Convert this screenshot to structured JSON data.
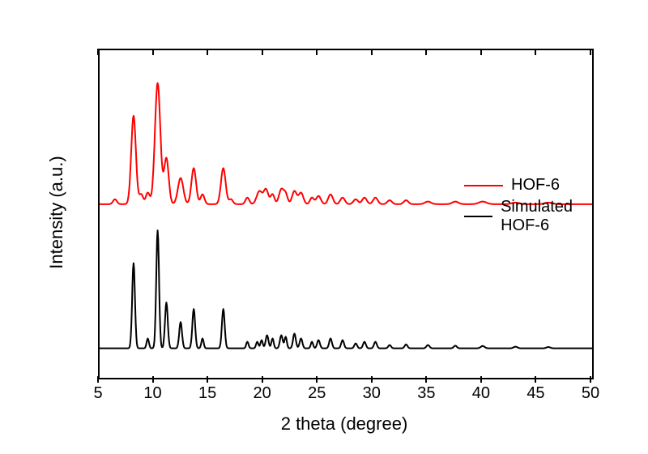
{
  "chart": {
    "type": "line",
    "background_color": "#ffffff",
    "border_color": "#000000",
    "xlabel": "2 theta (degree)",
    "ylabel": "Intensity (a.u.)",
    "label_fontsize": 22,
    "tick_fontsize": 20,
    "xlim": [
      5,
      50
    ],
    "xtick_step": 5,
    "xticks": [
      5,
      10,
      15,
      20,
      25,
      30,
      35,
      40,
      45,
      50
    ],
    "ylim": [
      0,
      100
    ],
    "show_y_ticks": false,
    "series": [
      {
        "name": "HOF-6",
        "color": "#ff0000",
        "line_width": 2,
        "baseline": 53,
        "peaks": [
          {
            "x": 6.4,
            "h": 1.5,
            "w": 0.25
          },
          {
            "x": 8.1,
            "h": 27,
            "w": 0.3
          },
          {
            "x": 8.8,
            "h": 3,
            "w": 0.25
          },
          {
            "x": 9.4,
            "h": 3.5,
            "w": 0.25
          },
          {
            "x": 10.3,
            "h": 37,
            "w": 0.35
          },
          {
            "x": 11.1,
            "h": 14,
            "w": 0.3
          },
          {
            "x": 12.4,
            "h": 8,
            "w": 0.35
          },
          {
            "x": 13.6,
            "h": 11,
            "w": 0.3
          },
          {
            "x": 14.4,
            "h": 3,
            "w": 0.25
          },
          {
            "x": 16.3,
            "h": 11,
            "w": 0.3
          },
          {
            "x": 17.0,
            "h": 1.5,
            "w": 0.25
          },
          {
            "x": 18.5,
            "h": 2,
            "w": 0.25
          },
          {
            "x": 19.6,
            "h": 4,
            "w": 0.35
          },
          {
            "x": 20.2,
            "h": 4.5,
            "w": 0.3
          },
          {
            "x": 20.8,
            "h": 3,
            "w": 0.25
          },
          {
            "x": 21.6,
            "h": 4.5,
            "w": 0.3
          },
          {
            "x": 22.0,
            "h": 3,
            "w": 0.25
          },
          {
            "x": 22.8,
            "h": 4,
            "w": 0.3
          },
          {
            "x": 23.4,
            "h": 3.5,
            "w": 0.3
          },
          {
            "x": 24.4,
            "h": 2,
            "w": 0.25
          },
          {
            "x": 25.0,
            "h": 2.5,
            "w": 0.3
          },
          {
            "x": 26.1,
            "h": 3,
            "w": 0.3
          },
          {
            "x": 27.2,
            "h": 2,
            "w": 0.3
          },
          {
            "x": 28.4,
            "h": 1.5,
            "w": 0.3
          },
          {
            "x": 29.2,
            "h": 2,
            "w": 0.3
          },
          {
            "x": 30.2,
            "h": 2,
            "w": 0.3
          },
          {
            "x": 31.5,
            "h": 1.2,
            "w": 0.3
          },
          {
            "x": 33.0,
            "h": 1.2,
            "w": 0.3
          },
          {
            "x": 35.0,
            "h": 0.8,
            "w": 0.4
          },
          {
            "x": 37.5,
            "h": 0.8,
            "w": 0.4
          },
          {
            "x": 40.0,
            "h": 0.8,
            "w": 0.5
          },
          {
            "x": 43.0,
            "h": 0.5,
            "w": 0.5
          },
          {
            "x": 46.0,
            "h": 0.5,
            "w": 0.5
          }
        ]
      },
      {
        "name": "Simulated HOF-6",
        "color": "#000000",
        "line_width": 2,
        "baseline": 9,
        "peaks": [
          {
            "x": 8.1,
            "h": 26,
            "w": 0.18
          },
          {
            "x": 9.4,
            "h": 3,
            "w": 0.15
          },
          {
            "x": 10.3,
            "h": 36,
            "w": 0.18
          },
          {
            "x": 11.1,
            "h": 14,
            "w": 0.18
          },
          {
            "x": 12.4,
            "h": 8,
            "w": 0.18
          },
          {
            "x": 13.6,
            "h": 12,
            "w": 0.18
          },
          {
            "x": 14.4,
            "h": 3,
            "w": 0.15
          },
          {
            "x": 16.3,
            "h": 12,
            "w": 0.18
          },
          {
            "x": 18.5,
            "h": 2,
            "w": 0.15
          },
          {
            "x": 19.4,
            "h": 2,
            "w": 0.15
          },
          {
            "x": 19.8,
            "h": 2.5,
            "w": 0.15
          },
          {
            "x": 20.3,
            "h": 4,
            "w": 0.18
          },
          {
            "x": 20.8,
            "h": 3,
            "w": 0.15
          },
          {
            "x": 21.6,
            "h": 4,
            "w": 0.18
          },
          {
            "x": 22.0,
            "h": 3.5,
            "w": 0.15
          },
          {
            "x": 22.8,
            "h": 4.5,
            "w": 0.18
          },
          {
            "x": 23.4,
            "h": 3,
            "w": 0.18
          },
          {
            "x": 24.4,
            "h": 2,
            "w": 0.15
          },
          {
            "x": 25.0,
            "h": 2.5,
            "w": 0.18
          },
          {
            "x": 26.1,
            "h": 3,
            "w": 0.18
          },
          {
            "x": 27.2,
            "h": 2.5,
            "w": 0.18
          },
          {
            "x": 28.4,
            "h": 1.5,
            "w": 0.18
          },
          {
            "x": 29.2,
            "h": 2,
            "w": 0.18
          },
          {
            "x": 30.2,
            "h": 2,
            "w": 0.18
          },
          {
            "x": 31.5,
            "h": 1,
            "w": 0.18
          },
          {
            "x": 33.0,
            "h": 1.2,
            "w": 0.18
          },
          {
            "x": 35.0,
            "h": 1,
            "w": 0.2
          },
          {
            "x": 37.5,
            "h": 0.8,
            "w": 0.2
          },
          {
            "x": 40.0,
            "h": 0.7,
            "w": 0.25
          },
          {
            "x": 43.0,
            "h": 0.5,
            "w": 0.25
          },
          {
            "x": 46.0,
            "h": 0.4,
            "w": 0.25
          }
        ]
      }
    ],
    "legend": {
      "position": "upper-right-inside",
      "items": [
        {
          "label": "HOF-6",
          "color": "#ff0000"
        },
        {
          "label": "Simulated HOF-6",
          "color": "#000000"
        }
      ]
    }
  }
}
